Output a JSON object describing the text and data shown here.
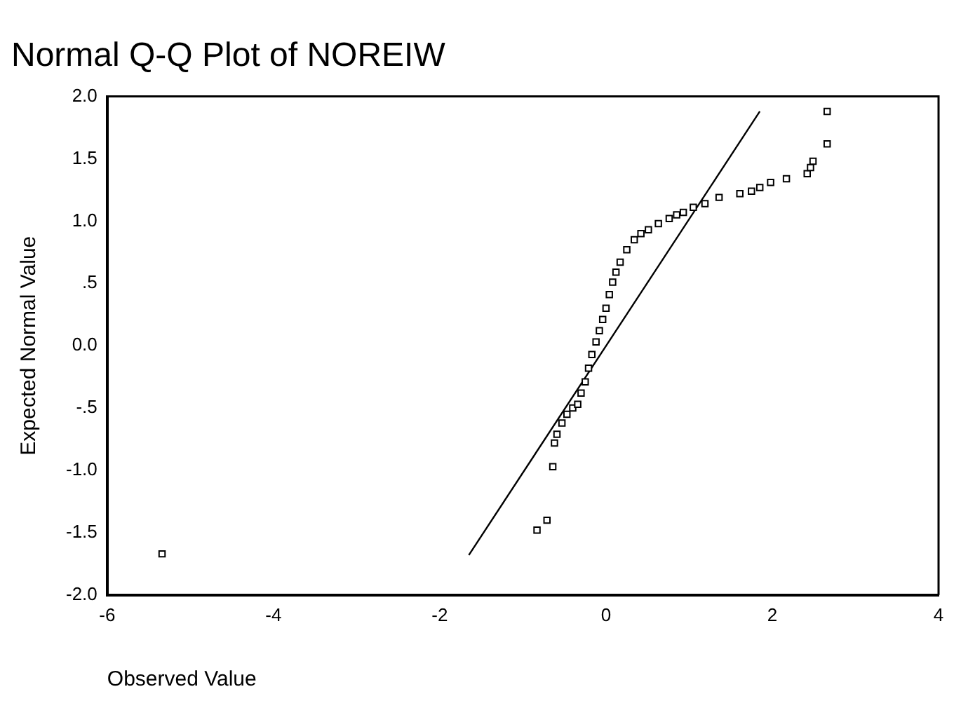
{
  "chart_data": {
    "type": "scatter",
    "title": "Normal Q-Q Plot of NOREIW",
    "xlabel": "Observed Value",
    "ylabel": "Expected Normal Value",
    "xlim": [
      -6,
      4
    ],
    "xticks": [
      -6,
      -4,
      -2,
      0,
      2,
      4
    ],
    "ylim": [
      -2,
      2
    ],
    "yticks": [
      {
        "value": -2,
        "label": "-2.0"
      },
      {
        "value": -1.5,
        "label": "-1.5"
      },
      {
        "value": -1,
        "label": "-1.0"
      },
      {
        "value": -0.5,
        "label": "-.5"
      },
      {
        "value": 0,
        "label": "0.0"
      },
      {
        "value": 0.5,
        "label": ".5"
      },
      {
        "value": 1,
        "label": "1.0"
      },
      {
        "value": 1.5,
        "label": "1.5"
      },
      {
        "value": 2,
        "label": "2.0"
      }
    ],
    "grid": false,
    "legend": false,
    "series": [
      {
        "color": "#000000",
        "marker": "square",
        "x": [
          -5.34,
          -0.83,
          -0.71,
          -0.64,
          -0.62,
          -0.59,
          -0.53,
          -0.47,
          -0.4,
          -0.34,
          -0.3,
          -0.25,
          -0.21,
          -0.17,
          -0.12,
          -0.08,
          -0.04,
          0,
          0.04,
          0.08,
          0.12,
          0.17,
          0.25,
          0.34,
          0.42,
          0.51,
          0.63,
          0.76,
          0.85,
          0.93,
          1.05,
          1.19,
          1.36,
          1.61,
          1.75,
          1.85,
          1.98,
          2.17,
          2.42,
          2.46,
          2.49,
          2.66,
          2.66
        ],
        "values": [
          -1.67,
          -1.48,
          -1.4,
          -0.97,
          -0.78,
          -0.71,
          -0.62,
          -0.55,
          -0.5,
          -0.47,
          -0.38,
          -0.29,
          -0.18,
          -0.07,
          0.03,
          0.12,
          0.21,
          0.3,
          0.41,
          0.51,
          0.59,
          0.67,
          0.77,
          0.85,
          0.9,
          0.93,
          0.98,
          1.02,
          1.05,
          1.07,
          1.11,
          1.14,
          1.19,
          1.22,
          1.24,
          1.27,
          1.31,
          1.34,
          1.38,
          1.43,
          1.48,
          1.62,
          1.88
        ]
      },
      {
        "type": "line",
        "color": "#000000",
        "marker": "none",
        "x": [
          -1.65,
          1.85
        ],
        "values": [
          -1.68,
          1.88
        ]
      }
    ]
  }
}
